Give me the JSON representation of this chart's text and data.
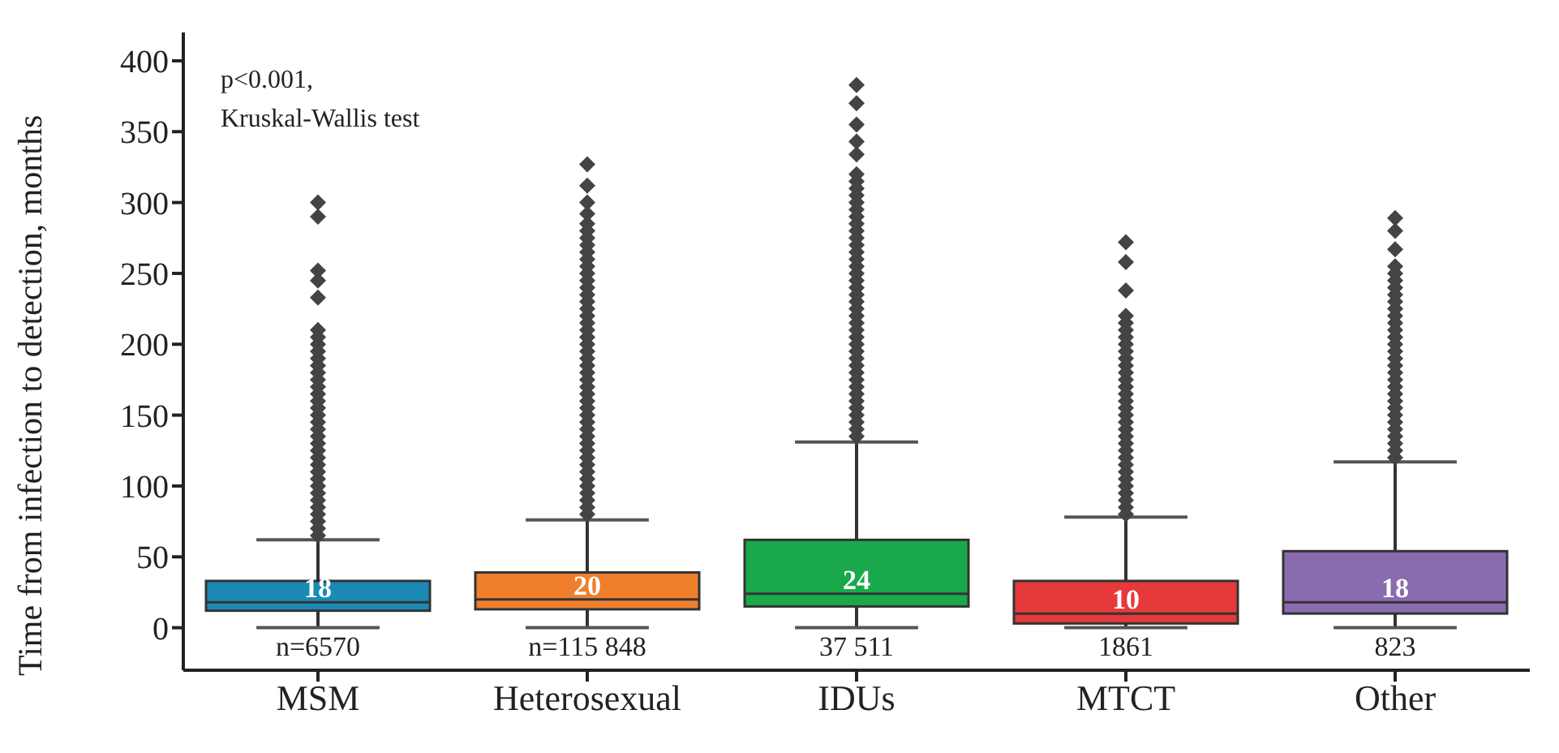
{
  "chart_data": {
    "type": "box",
    "ylabel": "Time from infection to detection, months",
    "categories": [
      "MSM",
      "Heterosexual",
      "IDUs",
      "MTCT",
      "Other"
    ],
    "colors": [
      "#1a8ab5",
      "#ef7f2d",
      "#19a94b",
      "#e63a3a",
      "#8b6bb0"
    ],
    "boxes": [
      {
        "low": 0,
        "q1": 12,
        "median": 18,
        "q3": 33,
        "high": 62,
        "outliers": [
          65,
          70,
          75,
          80,
          85,
          90,
          95,
          100,
          105,
          110,
          115,
          120,
          125,
          130,
          135,
          140,
          145,
          150,
          155,
          160,
          165,
          170,
          175,
          180,
          185,
          190,
          195,
          200,
          205,
          210,
          233,
          245,
          252,
          290,
          300
        ]
      },
      {
        "low": 0,
        "q1": 13,
        "median": 20,
        "q3": 39,
        "high": 76,
        "outliers": [
          80,
          85,
          90,
          95,
          100,
          105,
          110,
          115,
          120,
          125,
          130,
          135,
          140,
          145,
          150,
          155,
          160,
          165,
          170,
          175,
          180,
          185,
          190,
          195,
          200,
          205,
          210,
          215,
          220,
          225,
          230,
          235,
          240,
          245,
          250,
          255,
          260,
          265,
          270,
          275,
          280,
          285,
          292,
          300,
          312,
          327
        ]
      },
      {
        "low": 0,
        "q1": 15,
        "median": 24,
        "q3": 62,
        "high": 131,
        "outliers": [
          135,
          140,
          145,
          150,
          155,
          160,
          165,
          170,
          175,
          180,
          185,
          190,
          195,
          200,
          205,
          210,
          215,
          220,
          225,
          230,
          235,
          240,
          245,
          250,
          255,
          260,
          265,
          270,
          275,
          280,
          285,
          290,
          295,
          300,
          305,
          310,
          315,
          320,
          334,
          343,
          355,
          370,
          383
        ]
      },
      {
        "low": 0,
        "q1": 3,
        "median": 10,
        "q3": 33,
        "high": 78,
        "outliers": [
          80,
          85,
          90,
          95,
          100,
          105,
          110,
          115,
          120,
          125,
          130,
          135,
          140,
          145,
          150,
          155,
          160,
          165,
          170,
          175,
          180,
          185,
          190,
          195,
          200,
          205,
          210,
          215,
          220,
          238,
          258,
          272
        ]
      },
      {
        "low": 0,
        "q1": 10,
        "median": 18,
        "q3": 54,
        "high": 117,
        "outliers": [
          120,
          125,
          130,
          135,
          140,
          145,
          150,
          155,
          160,
          165,
          170,
          175,
          180,
          185,
          190,
          195,
          200,
          205,
          210,
          215,
          220,
          225,
          230,
          235,
          240,
          245,
          250,
          255,
          267,
          280,
          289
        ]
      }
    ],
    "value_labels": [
      "18",
      "20",
      "24",
      "10",
      "18"
    ],
    "ylim": [
      -30,
      420
    ],
    "yticks": [
      0,
      50,
      100,
      150,
      200,
      250,
      300,
      350,
      400
    ],
    "grid": false,
    "legend": false,
    "annotations": [
      "p<0.001,\nKruskal-Wallis test",
      "n=6570",
      "n=115 848",
      "37 511",
      "1861",
      "823"
    ]
  }
}
